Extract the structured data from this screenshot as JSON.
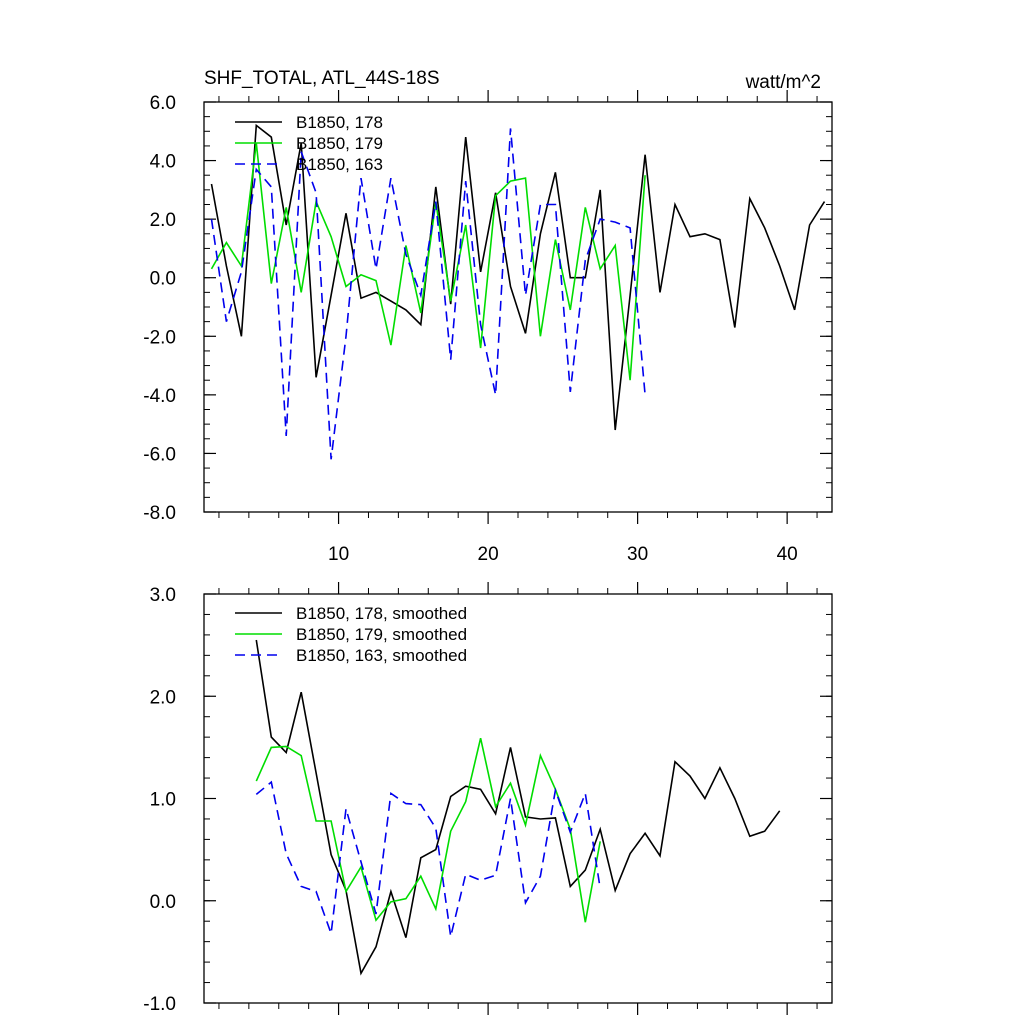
{
  "chart_data": [
    {
      "type": "line",
      "title": "SHF_TOTAL, ATL_44S-18S",
      "units": "watt/m^2",
      "xlim": [
        1,
        43
      ],
      "ylim": [
        -8,
        6
      ],
      "xticks": [
        10,
        20,
        30,
        40
      ],
      "xtick_labels": [
        "10",
        "20",
        "30",
        "40"
      ],
      "yticks": [
        -8,
        -6,
        -4,
        -2,
        0,
        2,
        4,
        6
      ],
      "ytick_labels": [
        "-8.0",
        "-6.0",
        "-4.0",
        "-2.0",
        "0.0",
        "2.0",
        "4.0",
        "6.0"
      ],
      "legend_position": "top-left",
      "series": [
        {
          "name": "B1850, 178",
          "color": "#000000",
          "dash": "solid",
          "x": [
            1.5,
            2.5,
            3.5,
            4.5,
            5.5,
            6.5,
            7.5,
            8.5,
            9.5,
            10.5,
            11.5,
            12.5,
            13.5,
            14.5,
            15.5,
            16.5,
            17.5,
            18.5,
            19.5,
            20.5,
            21.5,
            22.5,
            23.5,
            24.5,
            25.5,
            26.5,
            27.5,
            28.5,
            29.5,
            30.5,
            31.5,
            32.5,
            33.5,
            34.5,
            35.5,
            36.5,
            37.5,
            38.5,
            39.5,
            40.5,
            41.5,
            42.5
          ],
          "values": [
            3.2,
            0.4,
            -2.0,
            5.2,
            4.8,
            1.8,
            4.6,
            -3.4,
            -0.6,
            2.2,
            -0.7,
            -0.5,
            -0.8,
            -1.1,
            -1.6,
            3.1,
            -0.9,
            4.8,
            0.2,
            2.9,
            -0.3,
            -1.9,
            1.5,
            3.6,
            0.0,
            0.0,
            3.0,
            -5.2,
            -0.6,
            4.2,
            -0.5,
            2.5,
            1.4,
            1.5,
            1.3,
            -1.7,
            2.7,
            1.7,
            0.4,
            -1.1,
            1.8,
            2.6
          ]
        },
        {
          "name": "B1850, 179",
          "color": "#00dd00",
          "dash": "solid",
          "x": [
            1.5,
            2.5,
            3.5,
            4.5,
            5.5,
            6.5,
            7.5,
            8.5,
            9.5,
            10.5,
            11.5,
            12.5,
            13.5,
            14.5,
            15.5,
            16.5,
            17.5,
            18.5,
            19.5,
            20.5,
            21.5,
            22.5,
            23.5,
            24.5,
            25.5,
            26.5,
            27.5,
            28.5,
            29.5,
            30.5
          ],
          "values": [
            0.3,
            1.2,
            0.4,
            4.6,
            -0.2,
            2.4,
            -0.5,
            2.6,
            1.4,
            -0.3,
            0.1,
            -0.1,
            -2.3,
            1.1,
            -1.2,
            2.6,
            -0.8,
            1.8,
            -2.4,
            2.8,
            3.3,
            3.4,
            -2.0,
            1.3,
            -1.1,
            2.4,
            0.3,
            1.1,
            -3.5,
            3.5
          ]
        },
        {
          "name": "B1850, 163",
          "color": "#0000ee",
          "dash": "dashed",
          "x": [
            1.5,
            2.5,
            3.5,
            4.5,
            5.5,
            6.5,
            7.5,
            8.5,
            9.5,
            10.5,
            11.5,
            12.5,
            13.5,
            14.5,
            15.5,
            16.5,
            17.5,
            18.5,
            19.5,
            20.5,
            21.5,
            22.5,
            23.5,
            24.5,
            25.5,
            26.5,
            27.5,
            28.5,
            29.5,
            30.5
          ],
          "values": [
            2.0,
            -1.5,
            0.2,
            3.7,
            3.1,
            -5.4,
            4.3,
            2.9,
            -6.2,
            -2.0,
            3.4,
            0.3,
            3.4,
            0.8,
            -0.6,
            2.6,
            -2.8,
            3.3,
            -1.6,
            -4.0,
            5.1,
            -0.6,
            2.5,
            2.5,
            -3.9,
            0.6,
            2.0,
            1.9,
            1.7,
            -4.0
          ]
        }
      ]
    },
    {
      "type": "line",
      "title": "",
      "xlim": [
        1,
        43
      ],
      "ylim": [
        -1,
        3
      ],
      "xticks": [
        10,
        20,
        30,
        40
      ],
      "yticks": [
        -1,
        0,
        1,
        2,
        3
      ],
      "ytick_labels": [
        "-1.0",
        "0.0",
        "1.0",
        "2.0",
        "3.0"
      ],
      "legend_position": "top-left",
      "series": [
        {
          "name": "B1850, 178, smoothed",
          "color": "#000000",
          "dash": "solid",
          "x": [
            4.5,
            5.5,
            6.5,
            7.5,
            8.5,
            9.5,
            10.5,
            11.5,
            12.5,
            13.5,
            14.5,
            15.5,
            16.5,
            17.5,
            18.5,
            19.5,
            20.5,
            21.5,
            22.5,
            23.5,
            24.5,
            25.5,
            26.5,
            27.5,
            28.5,
            29.5,
            30.5,
            31.5,
            32.5,
            33.5,
            34.5,
            35.5,
            36.5,
            37.5,
            38.5,
            39.5
          ],
          "values": [
            2.55,
            1.6,
            1.45,
            2.04,
            1.25,
            0.45,
            0.1,
            -0.71,
            -0.45,
            0.09,
            -0.36,
            0.42,
            0.5,
            1.02,
            1.12,
            1.09,
            0.85,
            1.5,
            0.82,
            0.8,
            0.81,
            0.14,
            0.3,
            0.7,
            0.1,
            0.46,
            0.66,
            0.44,
            1.36,
            1.22,
            1.0,
            1.3,
            1.0,
            0.63,
            0.68,
            0.88
          ]
        },
        {
          "name": "B1850, 179, smoothed",
          "color": "#00dd00",
          "dash": "solid",
          "x": [
            4.5,
            5.5,
            6.5,
            7.5,
            8.5,
            9.5,
            10.5,
            11.5,
            12.5,
            13.5,
            14.5,
            15.5,
            16.5,
            17.5,
            18.5,
            19.5,
            20.5,
            21.5,
            22.5,
            23.5,
            24.5,
            25.5,
            26.5,
            27.5
          ],
          "values": [
            1.17,
            1.5,
            1.51,
            1.42,
            0.78,
            0.78,
            0.09,
            0.33,
            -0.19,
            -0.01,
            0.02,
            0.24,
            -0.08,
            0.68,
            0.97,
            1.59,
            0.92,
            1.15,
            0.74,
            1.42,
            1.09,
            0.7,
            -0.21,
            0.58
          ]
        },
        {
          "name": "B1850, 163, smoothed",
          "color": "#0000ee",
          "dash": "dashed",
          "x": [
            4.5,
            5.5,
            6.5,
            7.5,
            8.5,
            9.5,
            10.5,
            11.5,
            12.5,
            13.5,
            14.5,
            15.5,
            16.5,
            17.5,
            18.5,
            19.5,
            20.5,
            21.5,
            22.5,
            23.5,
            24.5,
            25.5,
            26.5,
            27.5
          ],
          "values": [
            1.04,
            1.16,
            0.46,
            0.14,
            0.09,
            -0.32,
            0.9,
            0.38,
            -0.13,
            1.05,
            0.95,
            0.94,
            0.71,
            -0.35,
            0.26,
            0.2,
            0.25,
            1.0,
            -0.02,
            0.24,
            1.08,
            0.67,
            1.05,
            0.12
          ]
        }
      ]
    }
  ]
}
